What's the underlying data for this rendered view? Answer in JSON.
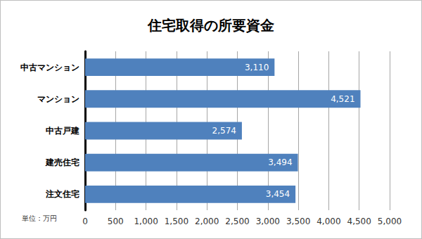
{
  "chart_data": {
    "type": "bar",
    "title": "住宅取得の所要資金",
    "orientation": "horizontal",
    "categories": [
      "中古マンション",
      "マンション",
      "中古戸建",
      "建売住宅",
      "注文住宅"
    ],
    "values": [
      3110,
      4521,
      2574,
      3494,
      3454
    ],
    "value_labels": [
      "3,110",
      "4,521",
      "2,574",
      "3,494",
      "3,454"
    ],
    "data_labels": true,
    "color": "#4f81bd",
    "xlim": [
      0,
      5000
    ],
    "xticks": [
      0,
      500,
      {
        "value": 1000,
        "label": "1,000"
      },
      {
        "value": 1500,
        "label": "1,500"
      },
      {
        "value": 2000,
        "label": "2,000"
      },
      {
        "value": 2500,
        "label": "2,500"
      },
      {
        "value": 3000,
        "label": "3,000"
      },
      {
        "value": 3500,
        "label": "3,500"
      },
      {
        "value": 4000,
        "label": "4,000"
      },
      {
        "value": 4500,
        "label": "4,500"
      },
      {
        "value": 5000,
        "label": "5,000"
      }
    ],
    "grid": true,
    "annotations": [
      "単位：万円"
    ]
  }
}
